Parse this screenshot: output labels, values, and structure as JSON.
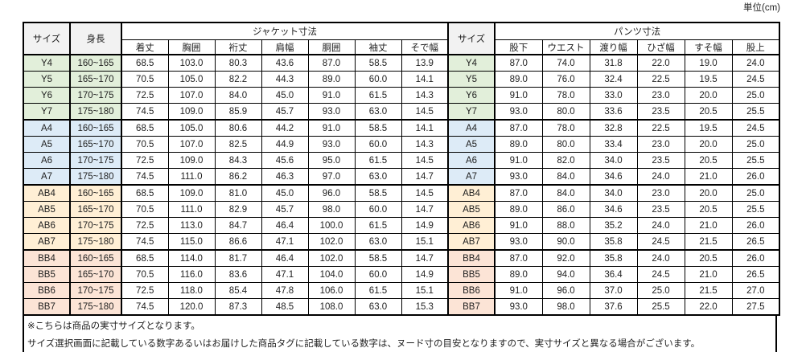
{
  "unit_label": "単位(cm)",
  "colors": {
    "group_y": "#E2EFDA",
    "group_a": "#DDEBF7",
    "group_ab": "#FFEFD5",
    "group_bb": "#FCE4D6",
    "header_bg": "#F2F2F2",
    "border": "#000000"
  },
  "table": {
    "size_header": "サイズ",
    "height_header": "身長",
    "jacket_group_header": "ジャケット寸法",
    "pants_group_header": "パンツ寸法",
    "jacket_columns": [
      "着丈",
      "胸囲",
      "裄丈",
      "肩幅",
      "胴囲",
      "袖丈",
      "そで幅"
    ],
    "pants_columns": [
      "股下",
      "ウエスト",
      "渡り幅",
      "ひざ幅",
      "すそ幅",
      "股上"
    ],
    "rows": [
      {
        "size": "Y4",
        "group": "y",
        "height": "160~165",
        "jacket": [
          "68.5",
          "103.0",
          "80.3",
          "43.6",
          "87.0",
          "58.5",
          "13.9"
        ],
        "pants": [
          "87.0",
          "74.0",
          "31.8",
          "22.0",
          "19.0",
          "24.0"
        ]
      },
      {
        "size": "Y5",
        "group": "y",
        "height": "165~170",
        "jacket": [
          "70.5",
          "105.0",
          "82.2",
          "44.3",
          "89.0",
          "60.0",
          "14.1"
        ],
        "pants": [
          "89.0",
          "76.0",
          "32.4",
          "22.5",
          "19.5",
          "24.5"
        ]
      },
      {
        "size": "Y6",
        "group": "y",
        "height": "170~175",
        "jacket": [
          "72.5",
          "107.0",
          "84.0",
          "45.0",
          "91.0",
          "61.5",
          "14.3"
        ],
        "pants": [
          "91.0",
          "78.0",
          "33.0",
          "23.0",
          "20.0",
          "25.0"
        ]
      },
      {
        "size": "Y7",
        "group": "y",
        "height": "175~180",
        "jacket": [
          "74.5",
          "109.0",
          "85.9",
          "45.7",
          "93.0",
          "63.0",
          "14.5"
        ],
        "pants": [
          "93.0",
          "80.0",
          "33.6",
          "23.5",
          "20.5",
          "25.5"
        ]
      },
      {
        "size": "A4",
        "group": "a",
        "height": "160~165",
        "jacket": [
          "68.5",
          "105.0",
          "80.6",
          "44.2",
          "91.0",
          "58.5",
          "14.1"
        ],
        "pants": [
          "87.0",
          "78.0",
          "32.8",
          "22.5",
          "19.5",
          "24.5"
        ]
      },
      {
        "size": "A5",
        "group": "a",
        "height": "165~170",
        "jacket": [
          "70.5",
          "107.0",
          "82.5",
          "44.9",
          "93.0",
          "60.0",
          "14.3"
        ],
        "pants": [
          "89.0",
          "80.0",
          "33.4",
          "23.0",
          "20.0",
          "25.0"
        ]
      },
      {
        "size": "A6",
        "group": "a",
        "height": "170~175",
        "jacket": [
          "72.5",
          "109.0",
          "84.3",
          "45.6",
          "95.0",
          "61.5",
          "14.5"
        ],
        "pants": [
          "91.0",
          "82.0",
          "34.0",
          "23.5",
          "20.5",
          "25.5"
        ]
      },
      {
        "size": "A7",
        "group": "a",
        "height": "175~180",
        "jacket": [
          "74.5",
          "111.0",
          "86.2",
          "46.3",
          "97.0",
          "63.0",
          "14.7"
        ],
        "pants": [
          "93.0",
          "84.0",
          "34.6",
          "24.0",
          "21.0",
          "26.0"
        ]
      },
      {
        "size": "AB4",
        "group": "ab",
        "height": "160~165",
        "jacket": [
          "68.5",
          "109.0",
          "81.0",
          "45.0",
          "96.0",
          "58.5",
          "14.5"
        ],
        "pants": [
          "87.0",
          "84.0",
          "34.0",
          "23.0",
          "20.0",
          "25.0"
        ]
      },
      {
        "size": "AB5",
        "group": "ab",
        "height": "165~170",
        "jacket": [
          "70.5",
          "111.0",
          "82.9",
          "45.7",
          "98.0",
          "60.0",
          "14.7"
        ],
        "pants": [
          "89.0",
          "86.0",
          "34.6",
          "23.5",
          "20.5",
          "25.5"
        ]
      },
      {
        "size": "AB6",
        "group": "ab",
        "height": "170~175",
        "jacket": [
          "72.5",
          "113.0",
          "84.7",
          "46.4",
          "100.0",
          "61.5",
          "14.9"
        ],
        "pants": [
          "91.0",
          "88.0",
          "35.2",
          "24.0",
          "21.0",
          "26.0"
        ]
      },
      {
        "size": "AB7",
        "group": "ab",
        "height": "175~180",
        "jacket": [
          "74.5",
          "115.0",
          "86.6",
          "47.1",
          "102.0",
          "63.0",
          "15.1"
        ],
        "pants": [
          "93.0",
          "90.0",
          "35.8",
          "24.5",
          "21.5",
          "26.5"
        ]
      },
      {
        "size": "BB4",
        "group": "bb",
        "height": "160~165",
        "jacket": [
          "68.5",
          "114.0",
          "81.7",
          "46.4",
          "102.0",
          "58.5",
          "14.7"
        ],
        "pants": [
          "87.0",
          "92.0",
          "35.8",
          "24.0",
          "20.5",
          "26.0"
        ]
      },
      {
        "size": "BB5",
        "group": "bb",
        "height": "165~170",
        "jacket": [
          "70.5",
          "116.0",
          "83.6",
          "47.1",
          "104.0",
          "60.0",
          "14.9"
        ],
        "pants": [
          "89.0",
          "94.0",
          "36.4",
          "24.5",
          "21.0",
          "26.5"
        ]
      },
      {
        "size": "BB6",
        "group": "bb",
        "height": "170~175",
        "jacket": [
          "72.5",
          "118.0",
          "85.4",
          "47.8",
          "106.0",
          "61.5",
          "15.1"
        ],
        "pants": [
          "91.0",
          "96.0",
          "37.0",
          "25.0",
          "21.5",
          "27.0"
        ]
      },
      {
        "size": "BB7",
        "group": "bb",
        "height": "175~180",
        "jacket": [
          "74.5",
          "120.0",
          "87.3",
          "48.5",
          "108.0",
          "63.0",
          "15.3"
        ],
        "pants": [
          "93.0",
          "98.0",
          "37.6",
          "25.5",
          "22.0",
          "27.5"
        ]
      }
    ]
  },
  "notes": [
    "※こちらは商品の実寸サイズとなります。",
    "サイズ選択画面に記載している数字あるいはお届けした商品タグに記載している数字は、ヌード寸の目安となりますので、実寸サイズと異なる場合がございます。"
  ]
}
